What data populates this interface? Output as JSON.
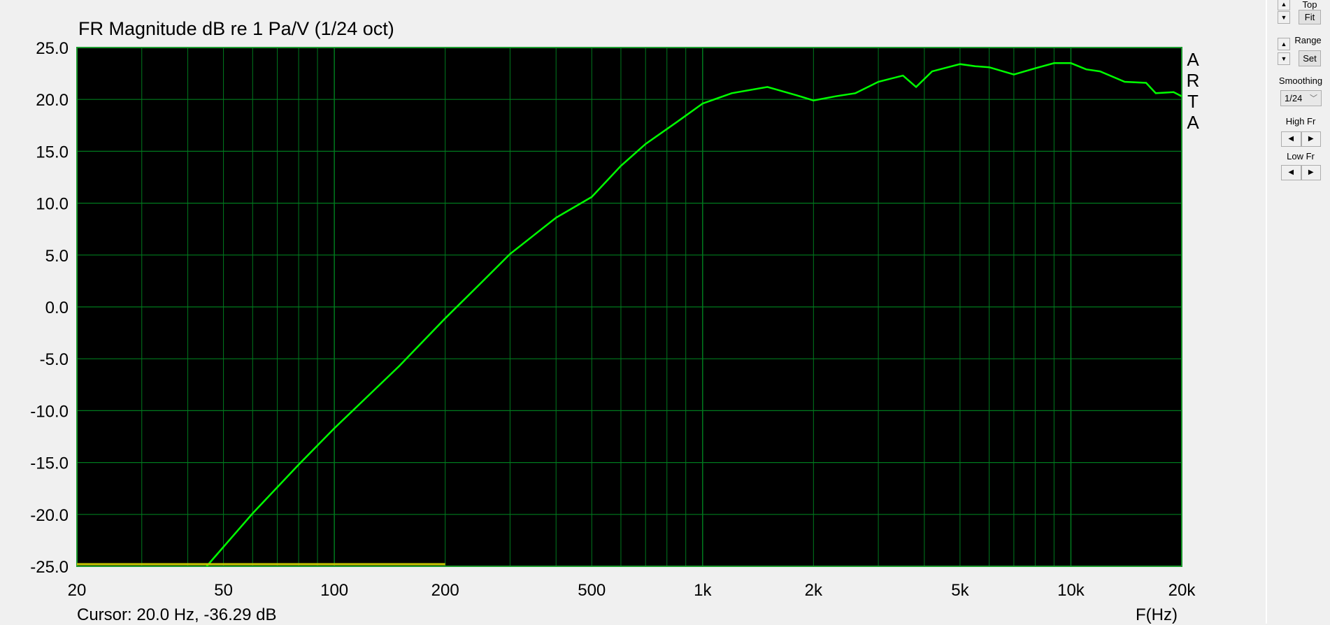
{
  "chart_data": {
    "type": "line",
    "title": "FR Magnitude dB re 1 Pa/V (1/24 oct)",
    "xlabel": "F(Hz)",
    "xscale": "log",
    "xlim": [
      20,
      20000
    ],
    "ylim": [
      -25,
      25
    ],
    "grid": true,
    "x_tick_values": [
      20,
      50,
      100,
      200,
      500,
      1000,
      2000,
      5000,
      10000,
      20000
    ],
    "x_tick_labels": [
      "20",
      "50",
      "100",
      "200",
      "500",
      "1k",
      "2k",
      "5k",
      "10k",
      "20k"
    ],
    "y_tick_labels": [
      "25.0",
      "20.0",
      "15.0",
      "10.0",
      "5.0",
      "0.0",
      "-5.0",
      "-10.0",
      "-15.0",
      "-20.0",
      "-25.0"
    ],
    "series": [
      {
        "color": "#00ff00",
        "x": [
          45,
          60,
          80,
          100,
          150,
          200,
          250,
          300,
          400,
          500,
          600,
          700,
          850,
          1000,
          1200,
          1500,
          1800,
          2000,
          2300,
          2600,
          3000,
          3500,
          3800,
          4200,
          5000,
          5500,
          6000,
          7000,
          8000,
          9000,
          10000,
          11000,
          12000,
          14000,
          16000,
          17000,
          19000,
          20000
        ],
        "y": [
          -25,
          -19.9,
          -15.2,
          -11.7,
          -5.7,
          -1.1,
          2.3,
          5.1,
          8.6,
          10.6,
          13.6,
          15.7,
          17.8,
          19.6,
          20.6,
          21.2,
          20.4,
          19.9,
          20.3,
          20.6,
          21.7,
          22.3,
          21.2,
          22.7,
          23.4,
          23.2,
          23.1,
          22.4,
          23.0,
          23.5,
          23.5,
          22.9,
          22.7,
          21.7,
          21.6,
          20.6,
          20.7,
          20.3
        ]
      },
      {
        "color": "#c8c800",
        "x": [
          20,
          200
        ],
        "y": [
          -24.8,
          -24.8
        ]
      }
    ]
  },
  "brand": [
    "A",
    "R",
    "T",
    "A"
  ],
  "status": {
    "cursor": "Cursor: 20.0 Hz, -36.29 dB",
    "x_unit": "F(Hz)"
  },
  "panel": {
    "top_label": "Top",
    "fit_button": "Fit",
    "range_label": "Range",
    "set_button": "Set",
    "smoothing_label": "Smoothing",
    "smoothing_value": "1/24",
    "high_fr_label": "High Fr",
    "low_fr_label": "Low Fr"
  },
  "colors": {
    "plot_bg": "#000000",
    "grid": "#007a1e",
    "trace": "#00ff00",
    "reference": "#c8c800"
  }
}
